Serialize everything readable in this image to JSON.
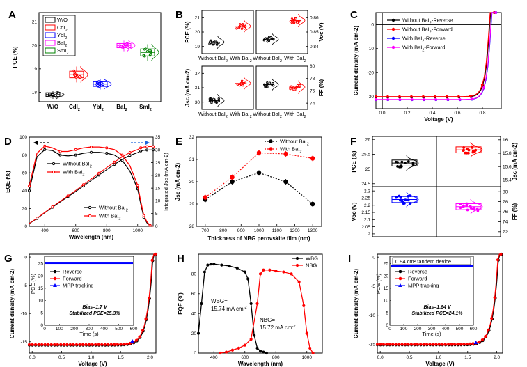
{
  "panel_labels": [
    "A",
    "B",
    "C",
    "D",
    "E",
    "F",
    "G",
    "H",
    "I"
  ],
  "chart_data": [
    {
      "panel": "A",
      "type": "scatter",
      "ylabel": "PCE (%)",
      "categories": [
        "W/O",
        "CdI2",
        "YbI2",
        "BaI2",
        "SmI2"
      ],
      "category_display": [
        "W/O",
        "CdI",
        "YbI",
        "BaI",
        "SmI"
      ],
      "legend": [
        "W/O",
        "CdI",
        "YbI",
        "BaI",
        "SmI"
      ],
      "yticks": [
        18,
        19,
        20,
        21
      ],
      "ylim": [
        17.6,
        21.4
      ],
      "colors": [
        "#000000",
        "#ff0000",
        "#0000ff",
        "#ff00ff",
        "#008000"
      ],
      "means": [
        17.9,
        18.75,
        18.35,
        20.0,
        19.7
      ],
      "q1": [
        17.82,
        18.62,
        18.25,
        19.9,
        19.55
      ],
      "q3": [
        17.98,
        18.9,
        18.45,
        20.08,
        19.85
      ],
      "mins": [
        17.72,
        18.42,
        18.12,
        19.75,
        19.35
      ],
      "maxs": [
        18.05,
        19.1,
        18.55,
        20.2,
        20.05
      ],
      "legend_position": "top-left"
    },
    {
      "panel": "B",
      "type": "scatter",
      "subplots": [
        {
          "ylabel": "PCE (%)",
          "yticks": [
            19,
            20,
            21
          ],
          "ylim": [
            18.5,
            21.5
          ],
          "categories": [
            "Without BaI",
            "With BaI"
          ],
          "means": [
            19.3,
            20.4
          ]
        },
        {
          "ylabel": "Voc (V)",
          "yticks": [
            0.84,
            0.85,
            0.86
          ],
          "ylim": [
            0.835,
            0.865
          ],
          "categories": [
            "Without BaI",
            "With BaI"
          ],
          "means": [
            0.845,
            0.858
          ]
        },
        {
          "ylabel": "Jsc (mA cm-2)",
          "yticks": [
            30,
            31,
            32
          ],
          "ylim": [
            29.5,
            32.5
          ],
          "categories": [
            "Without BaI",
            "With BaI"
          ],
          "means": [
            30.1,
            31.3
          ]
        },
        {
          "ylabel": "FF (%)",
          "yticks": [
            74,
            76,
            78,
            80
          ],
          "ylim": [
            73,
            80
          ],
          "categories": [
            "Without BaI",
            "With BaI"
          ],
          "means": [
            77.0,
            76.6
          ]
        }
      ]
    },
    {
      "panel": "C",
      "type": "line",
      "xlabel": "Voltage (V)",
      "ylabel": "Current density (mA cm-2)",
      "xlim": [
        -0.05,
        0.95
      ],
      "ylim": [
        -35,
        5
      ],
      "xticks": [
        0.0,
        0.2,
        0.4,
        0.6,
        0.8
      ],
      "yticks": [
        -30,
        -20,
        -10,
        0
      ],
      "series": [
        {
          "name": "Without BaI2-Reverse",
          "color": "#000000",
          "jsc": -30.2,
          "voc": 0.857
        },
        {
          "name": "Without BaI2-Forward",
          "color": "#ff0000",
          "jsc": -30.0,
          "voc": 0.853
        },
        {
          "name": "With BaI2-Reverse",
          "color": "#0000ff",
          "jsc": -31.3,
          "voc": 0.868
        },
        {
          "name": "With BaI2-Forward",
          "color": "#ff00ff",
          "jsc": -31.2,
          "voc": 0.866
        }
      ]
    },
    {
      "panel": "D",
      "type": "line",
      "xlabel": "Wavelength (nm)",
      "ylabel": "EQE (%)",
      "y2label": "Integrated Jsc (mA cm-2)",
      "xlim": [
        300,
        1100
      ],
      "ylim": [
        0,
        100
      ],
      "y2lim": [
        0,
        35
      ],
      "xticks": [
        400,
        600,
        800,
        1000
      ],
      "yticks": [
        0,
        20,
        40,
        60,
        80,
        100
      ],
      "y2ticks": [
        0,
        5,
        10,
        15,
        20,
        25,
        30,
        35
      ],
      "series": [
        {
          "name": "Without BaI2",
          "color": "#000000",
          "wavelength": [
            300,
            350,
            400,
            450,
            500,
            550,
            600,
            650,
            700,
            750,
            800,
            850,
            900,
            950,
            1000,
            1020,
            1040,
            1060,
            1080,
            1100
          ],
          "eqe": [
            40,
            78,
            86,
            85,
            80,
            79,
            80,
            82,
            83,
            83,
            82,
            80,
            74,
            62,
            42,
            25,
            10,
            4,
            1,
            0
          ]
        },
        {
          "name": "With BaI2",
          "color": "#ff0000",
          "wavelength": [
            300,
            350,
            400,
            450,
            500,
            550,
            600,
            650,
            700,
            750,
            800,
            850,
            900,
            950,
            1000,
            1020,
            1040,
            1060,
            1080,
            1100
          ],
          "eqe": [
            45,
            82,
            90,
            88,
            84,
            84,
            86,
            88,
            89,
            89,
            88,
            86,
            80,
            68,
            46,
            28,
            12,
            5,
            1,
            0
          ]
        }
      ]
    },
    {
      "panel": "E",
      "type": "line",
      "xlabel": "Thickness of NBG perovskite film (nm)",
      "ylabel": "Jsc (mA cm-2)",
      "xlim": [
        650,
        1350
      ],
      "ylim": [
        28,
        32
      ],
      "x": [
        700,
        850,
        1000,
        1150,
        1300
      ],
      "xticks": [
        700,
        800,
        900,
        1000,
        1100,
        1200,
        1300
      ],
      "yticks": [
        28,
        29,
        30,
        31,
        32
      ],
      "series": [
        {
          "name": "Without BaI2",
          "color": "#000000",
          "values": [
            29.2,
            30.0,
            30.4,
            30.0,
            29.0
          ]
        },
        {
          "name": "With BaI2",
          "color": "#ff0000",
          "values": [
            29.3,
            30.2,
            31.3,
            31.25,
            31.05
          ]
        }
      ]
    },
    {
      "panel": "F",
      "type": "scatter",
      "subplots": [
        {
          "ylabel": "PCE (%)",
          "yticks": [
            24.5,
            25.0,
            25.5,
            26.0
          ],
          "ylim": [
            24.4,
            26.1
          ],
          "colors": [
            "#000000",
            "#ff0000"
          ]
        },
        {
          "ylabel": "Jsc (mA cm-2)",
          "yticks": [
            15.4,
            15.6,
            15.8,
            16.0
          ],
          "ylim": [
            15.3,
            16.05
          ],
          "colors": [
            "#000000",
            "#ff0000"
          ]
        },
        {
          "ylabel": "Voc (V)",
          "yticks": [
            2.0,
            2.05,
            2.1,
            2.15,
            2.2,
            2.25,
            2.3
          ],
          "ylim": [
            1.98,
            2.33
          ],
          "colors": [
            "#0000ff",
            "#ff00ff"
          ]
        },
        {
          "ylabel": "FF (%)",
          "yticks": [
            72,
            74,
            76,
            78,
            80
          ],
          "ylim": [
            71,
            81
          ],
          "colors": [
            "#0000ff",
            "#ff00ff"
          ]
        }
      ]
    },
    {
      "panel": "G",
      "type": "line",
      "xlabel": "Voltage (V)",
      "ylabel": "Current density (mA cm-2)",
      "xlim": [
        -0.05,
        2.1
      ],
      "ylim": [
        -17,
        0.5
      ],
      "xticks": [
        0.0,
        0.5,
        1.0,
        1.5,
        2.0
      ],
      "yticks": [
        -15,
        -10,
        -5,
        0
      ],
      "series": [
        {
          "name": "Reverse",
          "color": "#000000",
          "jsc": -15.6,
          "voc": 2.05
        },
        {
          "name": "Forward",
          "color": "#ff0000",
          "jsc": -15.5,
          "voc": 2.04
        },
        {
          "name": "MPP tracking",
          "color": "#0000ff",
          "x": [
            1.7
          ],
          "y": [
            -14.9
          ]
        }
      ],
      "inset": {
        "xlabel": "Time (s)",
        "ylabel": "PCE (%)",
        "xticks": [
          0,
          100,
          200,
          300,
          400,
          500,
          600
        ],
        "yticks": [
          0,
          5,
          10,
          15,
          20,
          25
        ],
        "xlim": [
          0,
          600
        ],
        "ylim": [
          0,
          28
        ],
        "pce": 25.3,
        "note1": "Bias=1.7 V",
        "note2": "Stabilized PCE=25.3%"
      }
    },
    {
      "panel": "H",
      "type": "line",
      "xlabel": "Wavelength (nm)",
      "ylabel": "EQE (%)",
      "xlim": [
        300,
        1100
      ],
      "ylim": [
        0,
        100
      ],
      "xticks": [
        400,
        600,
        800,
        1000
      ],
      "yticks": [
        0,
        20,
        40,
        60,
        80
      ],
      "series": [
        {
          "name": "WBG",
          "color": "#000000",
          "wavelength": [
            300,
            320,
            340,
            360,
            380,
            400,
            450,
            500,
            550,
            600,
            620,
            640,
            660,
            680,
            700,
            720,
            740
          ],
          "eqe": [
            20,
            50,
            82,
            89,
            90,
            90,
            89,
            88,
            86,
            82,
            75,
            50,
            18,
            5,
            2,
            1,
            0
          ]
        },
        {
          "name": "NBG",
          "color": "#ff0000",
          "wavelength": [
            440,
            480,
            520,
            560,
            600,
            640,
            680,
            700,
            720,
            760,
            800,
            850,
            900,
            950,
            980,
            1000,
            1020,
            1040
          ],
          "eqe": [
            0,
            1,
            3,
            5,
            8,
            14,
            50,
            80,
            84,
            84,
            83,
            82,
            80,
            72,
            48,
            20,
            5,
            0
          ]
        }
      ],
      "annotations": [
        "WBG=",
        "15.74 mA cm-2",
        "NBG=",
        "15.72 mA cm-2"
      ]
    },
    {
      "panel": "I",
      "type": "line",
      "xlabel": "Voltage (V)",
      "ylabel": "Current density (mA cm-2)",
      "xlim": [
        -0.05,
        2.1
      ],
      "ylim": [
        -16.5,
        0.5
      ],
      "xticks": [
        0.0,
        0.5,
        1.0,
        1.5,
        2.0
      ],
      "yticks": [
        -15,
        -10,
        -5,
        0
      ],
      "series": [
        {
          "name": "Reverse",
          "color": "#000000",
          "jsc": -15.1,
          "voc": 2.03
        },
        {
          "name": "Forward",
          "color": "#ff0000",
          "jsc": -15.0,
          "voc": 2.02
        },
        {
          "name": "MPP tracking",
          "color": "#0000ff",
          "x": [
            1.64
          ],
          "y": [
            -14.7
          ]
        }
      ],
      "inset": {
        "xlabel": "Time (s)",
        "ylabel": "PCE (%)",
        "title": "0.94 cm² tandem device",
        "xticks": [
          0,
          100,
          200,
          300,
          400,
          500,
          600
        ],
        "yticks": [
          0,
          5,
          10,
          15,
          20,
          25
        ],
        "xlim": [
          0,
          600
        ],
        "ylim": [
          0,
          28
        ],
        "pce": 24.1,
        "note1": "Bias=1.64 V",
        "note2": "Stabilized PCE=24.1%"
      }
    }
  ]
}
